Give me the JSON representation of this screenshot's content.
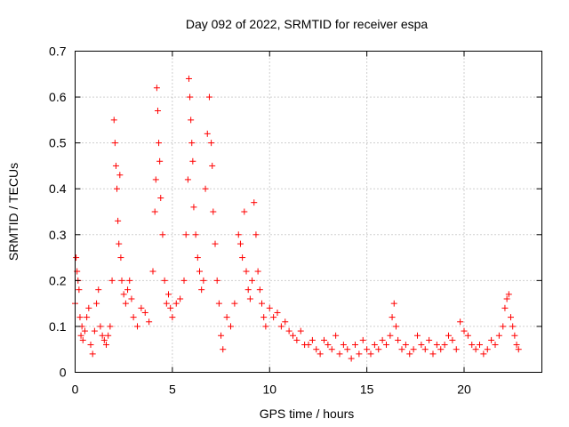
{
  "chart_data": {
    "type": "scatter",
    "title": "Day 092 of 2022, SRMTID for receiver espa",
    "xlabel": "GPS time / hours",
    "ylabel": "SRMTID / TECUs",
    "xlim": [
      0,
      24
    ],
    "ylim": [
      0,
      0.7
    ],
    "xticks": [
      "0",
      "5",
      "10",
      "15",
      "20"
    ],
    "xtick_values": [
      0,
      5,
      10,
      15,
      20
    ],
    "yticks": [
      "0",
      "0.1",
      "0.2",
      "0.3",
      "0.4",
      "0.5",
      "0.6",
      "0.7"
    ],
    "ytick_values": [
      0,
      0.1,
      0.2,
      0.3,
      0.4,
      0.5,
      0.6,
      0.7
    ],
    "grid": true,
    "marker": "+",
    "series": [
      {
        "name": "SRMTID",
        "color": "#ff0000",
        "x": [
          0.0,
          0.05,
          0.1,
          0.15,
          0.2,
          0.25,
          0.3,
          0.35,
          0.4,
          0.5,
          0.6,
          0.7,
          0.8,
          0.9,
          1.0,
          1.1,
          1.2,
          1.3,
          1.4,
          1.5,
          1.6,
          1.7,
          1.8,
          1.9,
          2.0,
          2.05,
          2.1,
          2.15,
          2.2,
          2.25,
          2.3,
          2.35,
          2.4,
          2.5,
          2.6,
          2.7,
          2.8,
          2.9,
          3.0,
          3.2,
          3.4,
          3.6,
          3.8,
          4.0,
          4.1,
          4.15,
          4.2,
          4.25,
          4.3,
          4.35,
          4.4,
          4.5,
          4.6,
          4.7,
          4.8,
          4.9,
          5.0,
          5.2,
          5.4,
          5.6,
          5.7,
          5.8,
          5.85,
          5.9,
          5.95,
          6.0,
          6.05,
          6.1,
          6.2,
          6.3,
          6.4,
          6.5,
          6.6,
          6.7,
          6.8,
          6.9,
          7.0,
          7.05,
          7.1,
          7.2,
          7.3,
          7.4,
          7.5,
          7.6,
          7.8,
          8.0,
          8.2,
          8.4,
          8.5,
          8.6,
          8.7,
          8.8,
          8.9,
          9.0,
          9.1,
          9.2,
          9.3,
          9.4,
          9.5,
          9.6,
          9.7,
          9.8,
          10.0,
          10.2,
          10.4,
          10.6,
          10.8,
          11.0,
          11.2,
          11.4,
          11.6,
          11.8,
          12.0,
          12.2,
          12.4,
          12.6,
          12.8,
          13.0,
          13.2,
          13.4,
          13.6,
          13.8,
          14.0,
          14.2,
          14.4,
          14.6,
          14.8,
          15.0,
          15.2,
          15.4,
          15.6,
          15.8,
          16.0,
          16.2,
          16.3,
          16.4,
          16.5,
          16.6,
          16.8,
          17.0,
          17.2,
          17.4,
          17.6,
          17.8,
          18.0,
          18.2,
          18.4,
          18.6,
          18.8,
          19.0,
          19.2,
          19.4,
          19.6,
          19.8,
          20.0,
          20.2,
          20.4,
          20.6,
          20.8,
          21.0,
          21.2,
          21.4,
          21.6,
          21.8,
          22.0,
          22.1,
          22.2,
          22.3,
          22.4,
          22.5,
          22.6,
          22.7,
          22.8
        ],
        "y": [
          0.15,
          0.25,
          0.22,
          0.2,
          0.18,
          0.12,
          0.08,
          0.1,
          0.07,
          0.09,
          0.12,
          0.14,
          0.06,
          0.04,
          0.09,
          0.15,
          0.18,
          0.1,
          0.08,
          0.07,
          0.06,
          0.08,
          0.1,
          0.2,
          0.55,
          0.5,
          0.45,
          0.4,
          0.33,
          0.28,
          0.43,
          0.25,
          0.2,
          0.17,
          0.15,
          0.18,
          0.2,
          0.16,
          0.12,
          0.1,
          0.14,
          0.13,
          0.11,
          0.22,
          0.35,
          0.42,
          0.62,
          0.57,
          0.5,
          0.46,
          0.38,
          0.3,
          0.2,
          0.15,
          0.17,
          0.14,
          0.12,
          0.15,
          0.16,
          0.2,
          0.3,
          0.42,
          0.64,
          0.6,
          0.55,
          0.5,
          0.46,
          0.36,
          0.3,
          0.25,
          0.22,
          0.18,
          0.2,
          0.4,
          0.52,
          0.6,
          0.5,
          0.45,
          0.35,
          0.28,
          0.2,
          0.15,
          0.08,
          0.05,
          0.12,
          0.1,
          0.15,
          0.3,
          0.28,
          0.25,
          0.35,
          0.22,
          0.18,
          0.16,
          0.2,
          0.37,
          0.3,
          0.22,
          0.18,
          0.15,
          0.12,
          0.1,
          0.14,
          0.12,
          0.13,
          0.1,
          0.11,
          0.09,
          0.08,
          0.07,
          0.09,
          0.06,
          0.06,
          0.07,
          0.05,
          0.04,
          0.07,
          0.06,
          0.05,
          0.08,
          0.04,
          0.06,
          0.05,
          0.03,
          0.06,
          0.04,
          0.07,
          0.05,
          0.04,
          0.06,
          0.05,
          0.07,
          0.06,
          0.08,
          0.12,
          0.15,
          0.1,
          0.07,
          0.05,
          0.06,
          0.04,
          0.05,
          0.08,
          0.06,
          0.05,
          0.07,
          0.04,
          0.06,
          0.05,
          0.06,
          0.08,
          0.07,
          0.05,
          0.11,
          0.09,
          0.08,
          0.06,
          0.05,
          0.06,
          0.04,
          0.05,
          0.07,
          0.06,
          0.08,
          0.1,
          0.14,
          0.16,
          0.17,
          0.12,
          0.1,
          0.08,
          0.06,
          0.05
        ]
      }
    ]
  }
}
